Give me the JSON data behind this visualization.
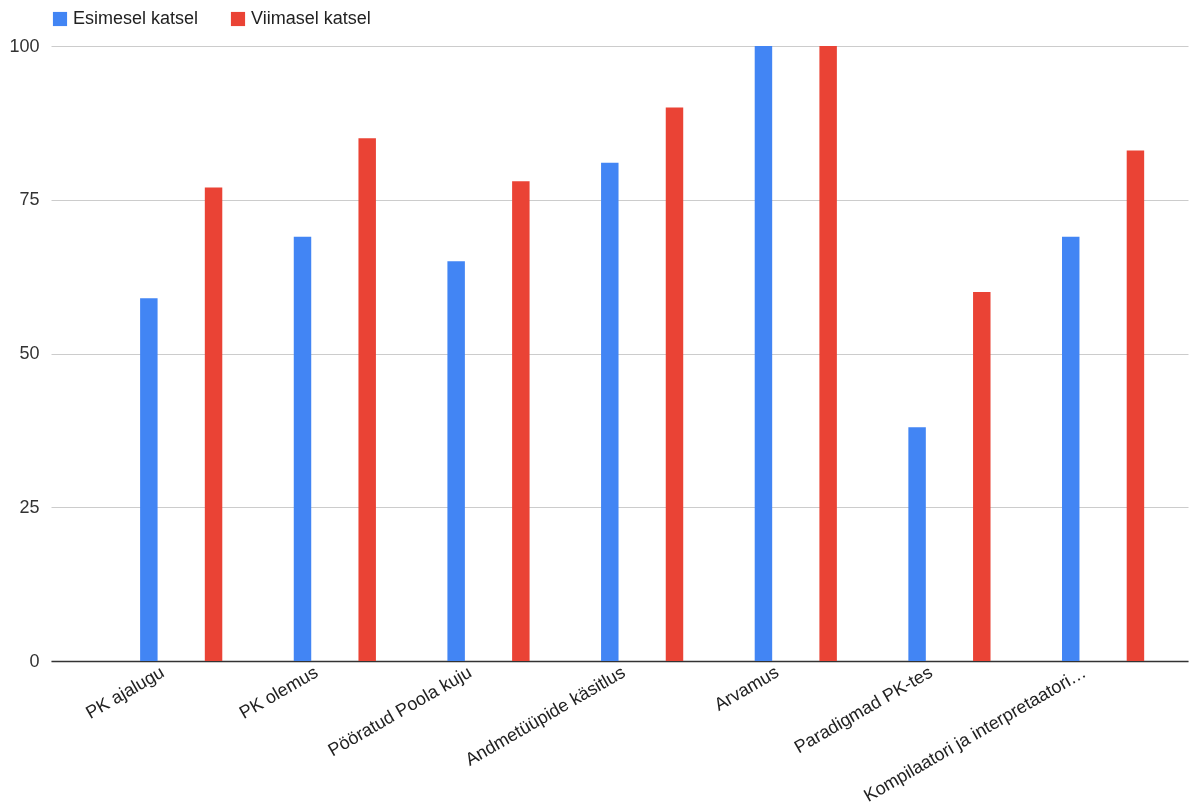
{
  "chart_data": {
    "type": "bar",
    "categories": [
      "PK ajalugu",
      "PK olemus",
      "Pööratud Poola kuju",
      "Andmetüüpide käsitlus",
      "Arvamus",
      "Paradigmad PK-tes",
      "Kompilaatori ja interpretaatori…"
    ],
    "series": [
      {
        "name": "Esimesel katsel",
        "color": "#4285f4",
        "values": [
          59,
          69,
          65,
          81,
          100,
          38,
          69
        ]
      },
      {
        "name": "Viimasel katsel",
        "color": "#ea4335",
        "values": [
          77,
          85,
          78,
          90,
          100,
          60,
          83
        ]
      }
    ],
    "ylim": [
      0,
      100
    ],
    "yticks": [
      0,
      25,
      50,
      75,
      100
    ],
    "grid": "y",
    "legend": "top"
  }
}
